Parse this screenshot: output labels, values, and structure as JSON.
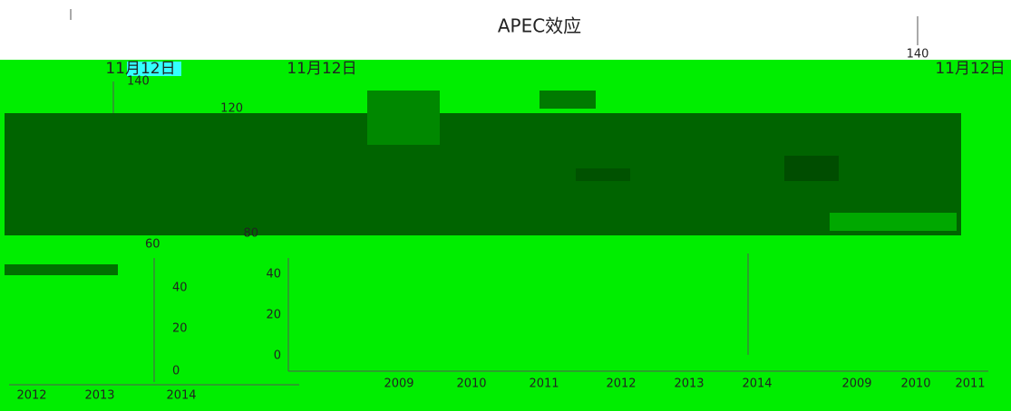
{
  "title": "APEC效应",
  "date_labels": [
    "11月12日",
    "11月12日",
    "11月12日"
  ],
  "left_panel": {
    "ticks": [
      140,
      60,
      40,
      20,
      0
    ],
    "years": [
      "2012",
      "2013",
      "2014"
    ]
  },
  "middle_panel": {
    "ticks": [
      120,
      80,
      40,
      20,
      0
    ],
    "years": [
      "2009",
      "2010",
      "2011",
      "2012",
      "2013",
      "2014"
    ]
  },
  "right_panel": {
    "ticks": [
      140
    ],
    "years": [
      "2009",
      "2010",
      "2011"
    ]
  }
}
